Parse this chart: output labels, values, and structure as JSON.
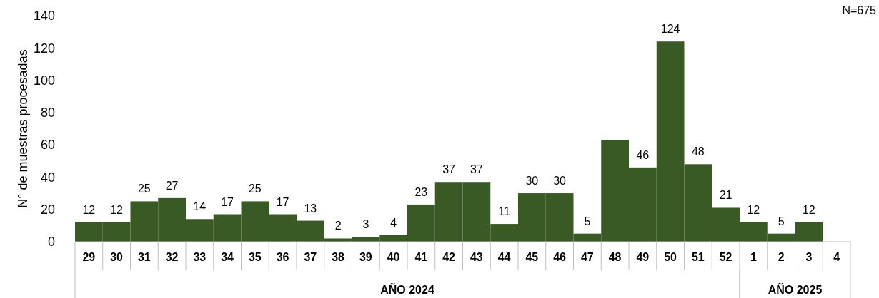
{
  "chart_data": {
    "type": "bar",
    "ylabel": "N° de muestras procesadas",
    "categories": [
      "29",
      "30",
      "31",
      "32",
      "33",
      "34",
      "35",
      "36",
      "37",
      "38",
      "39",
      "40",
      "41",
      "42",
      "43",
      "44",
      "45",
      "46",
      "47",
      "48",
      "49",
      "50",
      "51",
      "52",
      "1",
      "2",
      "3",
      "4"
    ],
    "values": [
      12,
      12,
      25,
      27,
      14,
      17,
      25,
      17,
      13,
      2,
      3,
      4,
      23,
      37,
      37,
      11,
      30,
      30,
      5,
      63,
      46,
      124,
      48,
      21,
      12,
      5,
      12,
      null
    ],
    "value_labels": [
      "12",
      "12",
      "25",
      "27",
      "14",
      "17",
      "25",
      "17",
      "13",
      "2",
      "3",
      "4",
      "23",
      "37",
      "37",
      "11",
      "30",
      "30",
      "5",
      null,
      "46",
      "124",
      "48",
      "21",
      "12",
      "5",
      "12",
      null
    ],
    "color": "#3a5a25",
    "ylim": [
      0,
      140
    ],
    "yticks": [
      0,
      20,
      40,
      60,
      80,
      100,
      120,
      140
    ],
    "grid": false,
    "annotations": [
      "N=675",
      "AÑO 2024",
      "AÑO 2025"
    ]
  }
}
